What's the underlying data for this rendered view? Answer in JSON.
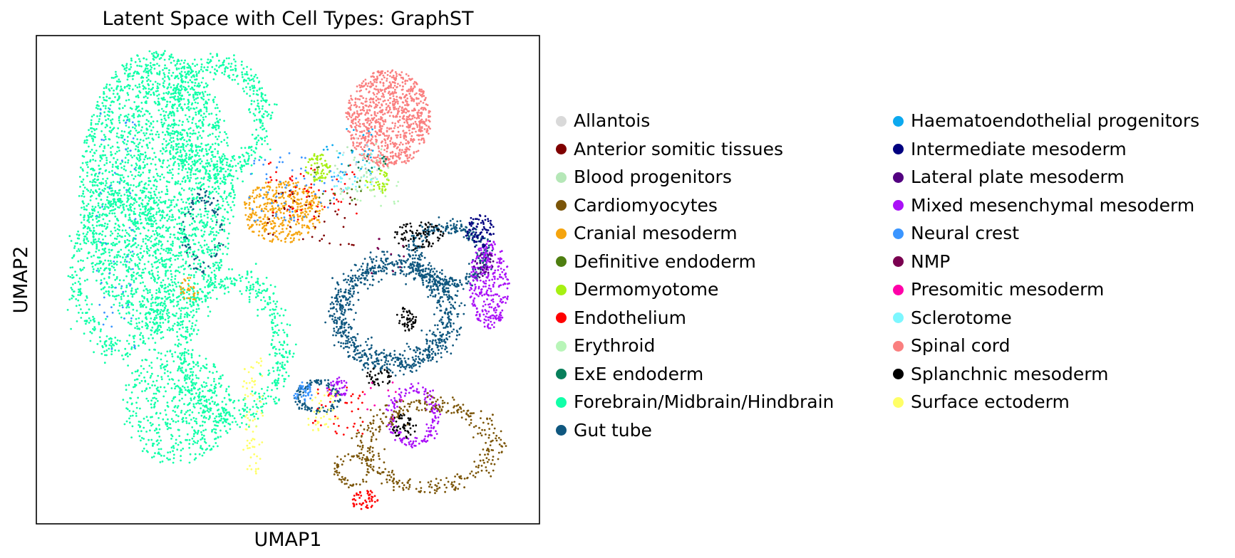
{
  "chart_data": {
    "type": "scatter",
    "title": "Latent Space with Cell Types: GraphST",
    "xlabel": "UMAP1",
    "ylabel": "UMAP2",
    "ticks": "none",
    "legend_placement": "right, two columns",
    "categories": [
      {
        "name": "Allantois",
        "color": "#d9d9d9"
      },
      {
        "name": "Anterior somitic tissues",
        "color": "#7f0000"
      },
      {
        "name": "Blood progenitors",
        "color": "#b5e7b7"
      },
      {
        "name": "Cardiomyocytes",
        "color": "#7b5508"
      },
      {
        "name": "Cranial mesoderm",
        "color": "#f5a40e"
      },
      {
        "name": "Definitive endoderm",
        "color": "#4e7e10"
      },
      {
        "name": "Dermomyotome",
        "color": "#a6f012"
      },
      {
        "name": "Endothelium",
        "color": "#ff0000"
      },
      {
        "name": "Erythroid",
        "color": "#b8f5b8"
      },
      {
        "name": "ExE endoderm",
        "color": "#087f5b"
      },
      {
        "name": "Forebrain/Midbrain/Hindbrain",
        "color": "#11ffa8"
      },
      {
        "name": "Gut tube",
        "color": "#0f577f"
      },
      {
        "name": "Haematoendothelial progenitors",
        "color": "#0ca9ef"
      },
      {
        "name": "Intermediate mesoderm",
        "color": "#00007f"
      },
      {
        "name": "Lateral plate mesoderm",
        "color": "#520180"
      },
      {
        "name": "Mixed mesenchymal mesoderm",
        "color": "#aa11f7"
      },
      {
        "name": "Neural crest",
        "color": "#3a95ff"
      },
      {
        "name": "NMP",
        "color": "#7a0050"
      },
      {
        "name": "Presomitic mesoderm",
        "color": "#ff00a8"
      },
      {
        "name": "Sclerotome",
        "color": "#7df7ff"
      },
      {
        "name": "Spinal cord",
        "color": "#fa7f7f"
      },
      {
        "name": "Splanchnic mesoderm",
        "color": "#000000"
      },
      {
        "name": "Surface ectoderm",
        "color": "#ffff66"
      }
    ],
    "clusters": [
      {
        "cat": 10,
        "cx": 2.4,
        "cy": 6.8,
        "rx": 1.55,
        "ry": 2.9,
        "n": 2600,
        "kind": "fill"
      },
      {
        "cat": 10,
        "cx": 2.8,
        "cy": 2.4,
        "rx": 1.1,
        "ry": 1.2,
        "n": 500,
        "kind": "fill"
      },
      {
        "cat": 10,
        "cx": 3.6,
        "cy": 8.3,
        "rx": 0.9,
        "ry": 1.1,
        "n": 500,
        "kind": "ring"
      },
      {
        "cat": 10,
        "cx": 3.9,
        "cy": 3.6,
        "rx": 1.0,
        "ry": 1.4,
        "n": 550,
        "kind": "ring"
      },
      {
        "cat": 10,
        "cx": 1.7,
        "cy": 5.1,
        "rx": 0.9,
        "ry": 1.5,
        "n": 450,
        "kind": "ring"
      },
      {
        "cat": 20,
        "cx": 7.0,
        "cy": 8.3,
        "rx": 0.85,
        "ry": 1.0,
        "n": 900,
        "kind": "fill"
      },
      {
        "cat": 4,
        "cx": 4.9,
        "cy": 6.4,
        "rx": 0.8,
        "ry": 0.65,
        "n": 420,
        "kind": "fill"
      },
      {
        "cat": 4,
        "cx": 3.05,
        "cy": 4.8,
        "rx": 0.2,
        "ry": 0.25,
        "n": 30,
        "kind": "fill"
      },
      {
        "cat": 6,
        "cx": 5.6,
        "cy": 7.3,
        "rx": 0.25,
        "ry": 0.3,
        "n": 70,
        "kind": "fill"
      },
      {
        "cat": 6,
        "cx": 6.8,
        "cy": 7.0,
        "rx": 0.25,
        "ry": 0.25,
        "n": 40,
        "kind": "fill"
      },
      {
        "cat": 11,
        "cx": 7.1,
        "cy": 4.3,
        "rx": 1.1,
        "ry": 1.0,
        "n": 900,
        "kind": "ring"
      },
      {
        "cat": 11,
        "cx": 8.2,
        "cy": 5.5,
        "rx": 0.7,
        "ry": 0.6,
        "n": 350,
        "kind": "ring"
      },
      {
        "cat": 11,
        "cx": 5.6,
        "cy": 2.6,
        "rx": 0.4,
        "ry": 0.3,
        "n": 120,
        "kind": "ring"
      },
      {
        "cat": 11,
        "cx": 3.3,
        "cy": 6.0,
        "rx": 0.35,
        "ry": 0.7,
        "n": 80,
        "kind": "ring"
      },
      {
        "cat": 15,
        "cx": 9.0,
        "cy": 4.9,
        "rx": 0.4,
        "ry": 0.9,
        "n": 300,
        "kind": "fill"
      },
      {
        "cat": 15,
        "cx": 7.5,
        "cy": 2.2,
        "rx": 0.45,
        "ry": 0.55,
        "n": 170,
        "kind": "ring"
      },
      {
        "cat": 15,
        "cx": 6.0,
        "cy": 2.8,
        "rx": 0.25,
        "ry": 0.2,
        "n": 40,
        "kind": "fill"
      },
      {
        "cat": 3,
        "cx": 7.8,
        "cy": 1.6,
        "rx": 1.25,
        "ry": 0.85,
        "n": 380,
        "kind": "ring"
      },
      {
        "cat": 3,
        "cx": 6.3,
        "cy": 1.1,
        "rx": 0.35,
        "ry": 0.3,
        "n": 60,
        "kind": "ring"
      },
      {
        "cat": 21,
        "cx": 7.6,
        "cy": 5.9,
        "rx": 0.5,
        "ry": 0.3,
        "n": 90,
        "kind": "fill"
      },
      {
        "cat": 21,
        "cx": 7.35,
        "cy": 4.2,
        "rx": 0.2,
        "ry": 0.25,
        "n": 50,
        "kind": "fill"
      },
      {
        "cat": 21,
        "cx": 6.8,
        "cy": 3.0,
        "rx": 0.25,
        "ry": 0.2,
        "n": 40,
        "kind": "fill"
      },
      {
        "cat": 21,
        "cx": 7.3,
        "cy": 2.0,
        "rx": 0.25,
        "ry": 0.25,
        "n": 50,
        "kind": "fill"
      },
      {
        "cat": 13,
        "cx": 8.8,
        "cy": 6.0,
        "rx": 0.3,
        "ry": 0.35,
        "n": 80,
        "kind": "fill"
      },
      {
        "cat": 14,
        "cx": 8.9,
        "cy": 5.3,
        "rx": 0.2,
        "ry": 0.3,
        "n": 30,
        "kind": "fill"
      },
      {
        "cat": 7,
        "cx": 6.5,
        "cy": 0.5,
        "rx": 0.3,
        "ry": 0.2,
        "n": 50,
        "kind": "fill"
      },
      {
        "cat": 7,
        "cx": 5.5,
        "cy": 6.8,
        "rx": 0.9,
        "ry": 0.6,
        "n": 60,
        "kind": "scatter"
      },
      {
        "cat": 7,
        "cx": 6.0,
        "cy": 2.3,
        "rx": 0.5,
        "ry": 0.5,
        "n": 40,
        "kind": "scatter"
      },
      {
        "cat": 16,
        "cx": 5.3,
        "cy": 2.7,
        "rx": 0.2,
        "ry": 0.2,
        "n": 40,
        "kind": "fill"
      },
      {
        "cat": 16,
        "cx": 5.2,
        "cy": 6.9,
        "rx": 1.0,
        "ry": 0.7,
        "n": 70,
        "kind": "scatter"
      },
      {
        "cat": 16,
        "cx": 1.6,
        "cy": 6.0,
        "rx": 0.4,
        "ry": 2.5,
        "n": 60,
        "kind": "scatter"
      },
      {
        "cat": 22,
        "cx": 4.3,
        "cy": 2.2,
        "rx": 0.2,
        "ry": 1.2,
        "n": 70,
        "kind": "scatter"
      },
      {
        "cat": 22,
        "cx": 5.7,
        "cy": 2.3,
        "rx": 0.3,
        "ry": 0.4,
        "n": 40,
        "kind": "scatter"
      },
      {
        "cat": 1,
        "cx": 5.5,
        "cy": 6.3,
        "rx": 0.9,
        "ry": 0.6,
        "n": 40,
        "kind": "scatter"
      },
      {
        "cat": 19,
        "cx": 6.4,
        "cy": 7.2,
        "rx": 0.5,
        "ry": 0.4,
        "n": 40,
        "kind": "scatter"
      },
      {
        "cat": 12,
        "cx": 6.2,
        "cy": 7.6,
        "rx": 0.5,
        "ry": 0.5,
        "n": 30,
        "kind": "scatter"
      },
      {
        "cat": 8,
        "cx": 6.6,
        "cy": 7.0,
        "rx": 0.6,
        "ry": 0.5,
        "n": 30,
        "kind": "scatter"
      },
      {
        "cat": 2,
        "cx": 6.4,
        "cy": 7.3,
        "rx": 0.5,
        "ry": 0.5,
        "n": 25,
        "kind": "scatter"
      },
      {
        "cat": 5,
        "cx": 6.0,
        "cy": 7.0,
        "rx": 0.5,
        "ry": 0.4,
        "n": 15,
        "kind": "scatter"
      },
      {
        "cat": 9,
        "cx": 6.6,
        "cy": 7.4,
        "rx": 0.4,
        "ry": 0.3,
        "n": 15,
        "kind": "scatter"
      },
      {
        "cat": 17,
        "cx": 7.0,
        "cy": 5.5,
        "rx": 0.4,
        "ry": 0.4,
        "n": 10,
        "kind": "scatter"
      },
      {
        "cat": 18,
        "cx": 6.9,
        "cy": 2.5,
        "rx": 0.4,
        "ry": 0.4,
        "n": 10,
        "kind": "scatter"
      },
      {
        "cat": 0,
        "cx": 6.5,
        "cy": 7.5,
        "rx": 0.5,
        "ry": 0.5,
        "n": 10,
        "kind": "scatter"
      }
    ]
  }
}
